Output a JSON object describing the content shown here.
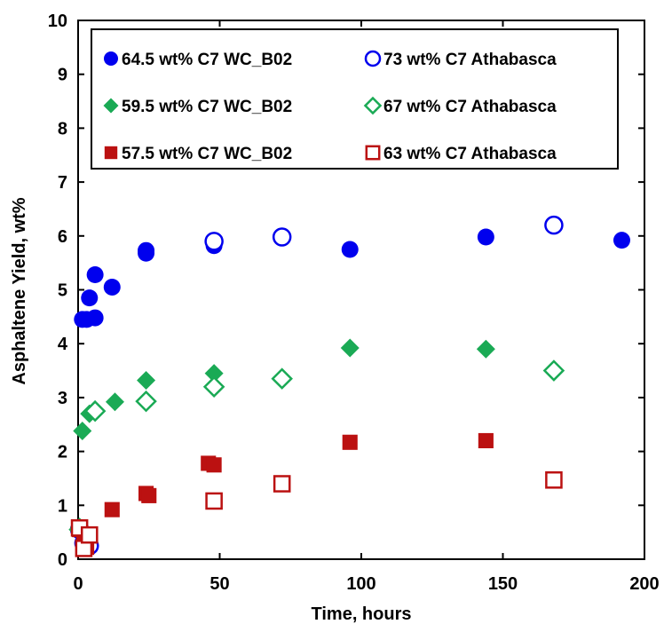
{
  "chart_data": {
    "type": "scatter",
    "title": "",
    "xlabel": "Time, hours",
    "ylabel": "Asphaltene Yield, wt%",
    "xlim": [
      0,
      200
    ],
    "ylim": [
      0,
      10
    ],
    "xticks": [
      "0",
      "50",
      "100",
      "150",
      "200"
    ],
    "yticks": [
      "0",
      "1",
      "2",
      "3",
      "4",
      "5",
      "6",
      "7",
      "8",
      "9",
      "10"
    ],
    "grid": false,
    "legend_position": "top",
    "series": [
      {
        "name": "64.5 wt% C7 WC_B02",
        "marker": "circle",
        "filled": true,
        "color": "#0000ee",
        "x": [
          0.5,
          1.5,
          3,
          4,
          6,
          6,
          12,
          24,
          24,
          48,
          48,
          96,
          144,
          192
        ],
        "y": [
          0.55,
          4.45,
          4.45,
          4.85,
          5.28,
          4.48,
          5.05,
          5.68,
          5.73,
          5.82,
          5.88,
          5.75,
          5.98,
          5.92
        ]
      },
      {
        "name": "73 wt% C7 Athabasca",
        "marker": "circle",
        "filled": false,
        "color": "#0000ee",
        "x": [
          0.5,
          2,
          4,
          48,
          72,
          168
        ],
        "y": [
          0.55,
          0.3,
          0.25,
          5.9,
          5.98,
          6.2
        ]
      },
      {
        "name": "59.5 wt% C7 WC_B02",
        "marker": "diamond",
        "filled": true,
        "color": "#1aaa55",
        "x": [
          0.5,
          1.5,
          4,
          6,
          13,
          24,
          48,
          96,
          144
        ],
        "y": [
          0.6,
          2.38,
          2.7,
          2.75,
          2.92,
          3.32,
          3.45,
          3.92,
          3.9
        ]
      },
      {
        "name": "67 wt% C7 Athabasca",
        "marker": "diamond",
        "filled": false,
        "color": "#1aaa55",
        "x": [
          0.5,
          6,
          24,
          48,
          72,
          168
        ],
        "y": [
          0.55,
          2.75,
          2.93,
          3.2,
          3.35,
          3.5
        ]
      },
      {
        "name": "57.5 wt% C7 WC_B02",
        "marker": "square",
        "filled": true,
        "color": "#bb1111",
        "x": [
          0.5,
          2,
          3,
          4,
          12,
          24,
          25,
          46,
          48,
          96,
          144
        ],
        "y": [
          0.55,
          0.35,
          0.22,
          0.45,
          0.92,
          1.22,
          1.18,
          1.78,
          1.75,
          2.17,
          2.2
        ]
      },
      {
        "name": "63 wt% C7 Athabasca",
        "marker": "square",
        "filled": false,
        "color": "#bb1111",
        "x": [
          0.5,
          2,
          4,
          48,
          72,
          168
        ],
        "y": [
          0.58,
          0.2,
          0.45,
          1.08,
          1.4,
          1.47
        ]
      }
    ]
  }
}
